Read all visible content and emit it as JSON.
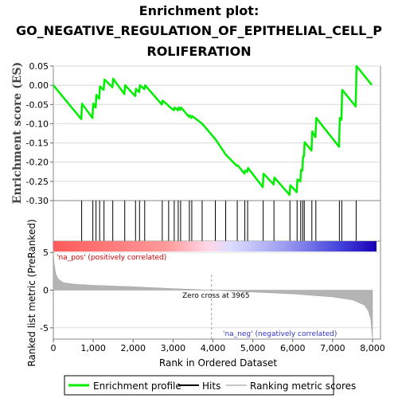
{
  "title_lines": [
    "Enrichment plot:",
    "GO_NEGATIVE_REGULATION_OF_EPITHELIAL_CELL_P",
    "ROLIFERATION"
  ],
  "colors": {
    "profile": "#00ee00",
    "hits": "#000000",
    "metric_fill": "#b4b4b4",
    "pos_label": "#cc0000",
    "neg_label": "#3333cc",
    "zero_line": "#999999"
  },
  "chart_data": [
    {
      "type": "line",
      "name": "enrichment-profile",
      "ylabel": "Enrichment score (ES)",
      "xlim": [
        0,
        8200
      ],
      "ylim": [
        -0.3,
        0.05
      ],
      "yticks": [
        0.05,
        0.0,
        -0.05,
        -0.1,
        -0.15,
        -0.2,
        -0.25,
        -0.3
      ],
      "ytick_labels": [
        "0.05",
        "0.00",
        "-0.05",
        "-0.10",
        "-0.15",
        "-0.20",
        "-0.25",
        "-0.30"
      ],
      "grid": true,
      "x": [
        0,
        700,
        720,
        980,
        1000,
        1060,
        1080,
        1150,
        1170,
        1260,
        1280,
        1480,
        1500,
        1780,
        1800,
        2050,
        2070,
        2150,
        2170,
        2280,
        2300,
        2720,
        2740,
        2880,
        2900,
        3020,
        3040,
        3120,
        3140,
        3180,
        3200,
        3400,
        3420,
        3460,
        3480,
        3730,
        4060,
        4320,
        4600,
        4620,
        4790,
        4810,
        4860,
        4880,
        5250,
        5270,
        5520,
        5540,
        5920,
        5940,
        6100,
        6120,
        6190,
        6210,
        6240,
        6260,
        6280,
        6300,
        6470,
        6490,
        6570,
        6590,
        7160,
        7180,
        7220,
        7240,
        7580,
        7600,
        7980
      ],
      "y": [
        0.0,
        -0.088,
        -0.048,
        -0.085,
        -0.048,
        -0.058,
        -0.025,
        -0.035,
        -0.003,
        -0.012,
        0.015,
        -0.005,
        0.017,
        -0.023,
        0.0,
        -0.028,
        -0.009,
        -0.018,
        0.0,
        -0.01,
        0.0,
        -0.05,
        -0.04,
        -0.052,
        -0.055,
        -0.065,
        -0.058,
        -0.065,
        -0.058,
        -0.064,
        -0.058,
        -0.082,
        -0.078,
        -0.085,
        -0.08,
        -0.1,
        -0.14,
        -0.18,
        -0.21,
        -0.208,
        -0.23,
        -0.222,
        -0.225,
        -0.215,
        -0.265,
        -0.23,
        -0.258,
        -0.24,
        -0.285,
        -0.26,
        -0.278,
        -0.245,
        -0.25,
        -0.22,
        -0.222,
        -0.185,
        -0.185,
        -0.148,
        -0.17,
        -0.12,
        -0.135,
        -0.085,
        -0.16,
        -0.085,
        -0.09,
        -0.012,
        -0.055,
        0.05,
        0.001
      ]
    },
    {
      "type": "hits",
      "name": "gene-set-hits",
      "positions": [
        710,
        990,
        1070,
        1160,
        1270,
        1490,
        1790,
        2060,
        2160,
        2290,
        2730,
        2890,
        3030,
        3130,
        3190,
        3410,
        3470,
        3730,
        4060,
        4320,
        4610,
        4800,
        4870,
        5260,
        5530,
        5930,
        6110,
        6200,
        6250,
        6290,
        6480,
        6580,
        7170,
        7230,
        7590
      ]
    },
    {
      "type": "area",
      "name": "ranked-list-metric",
      "ylabel": "Ranked list metric (PreRanked)",
      "xlabel": "Rank in Ordered Dataset",
      "xlim": [
        0,
        8200
      ],
      "ylim": [
        -6.5,
        6.5
      ],
      "xticks": [
        0,
        1000,
        2000,
        3000,
        4000,
        5000,
        6000,
        7000,
        8000
      ],
      "xtick_labels": [
        "0",
        "1,000",
        "2,000",
        "3,000",
        "4,000",
        "5,000",
        "6,000",
        "7,000",
        "8,000"
      ],
      "yticks": [
        5,
        0,
        -5
      ],
      "ytick_labels": [
        "5",
        "0",
        "-5"
      ],
      "x": [
        0,
        20,
        60,
        120,
        250,
        500,
        1000,
        2000,
        3000,
        3965,
        5000,
        6000,
        7000,
        7500,
        7800,
        7900,
        7960,
        7990,
        8000
      ],
      "y": [
        5.5,
        3.5,
        2.2,
        1.5,
        1.0,
        0.8,
        0.65,
        0.45,
        0.2,
        0.0,
        -0.25,
        -0.5,
        -0.9,
        -1.3,
        -2.0,
        -2.8,
        -4.0,
        -6.0,
        -6.5
      ],
      "zero_cross": 3965
    }
  ],
  "annotations": {
    "pos_label": "'na_pos' (positively correlated)",
    "neg_label": "'na_neg' (negatively correlated)",
    "zero_cross_label": "Zero cross at 3965"
  },
  "legend": {
    "placement": "bottom",
    "items": [
      {
        "label": "Enrichment profile",
        "color": "#00ee00"
      },
      {
        "label": "Hits",
        "color": "#000000"
      },
      {
        "label": "Ranking metric scores",
        "color": "#c8c8c8"
      }
    ]
  }
}
